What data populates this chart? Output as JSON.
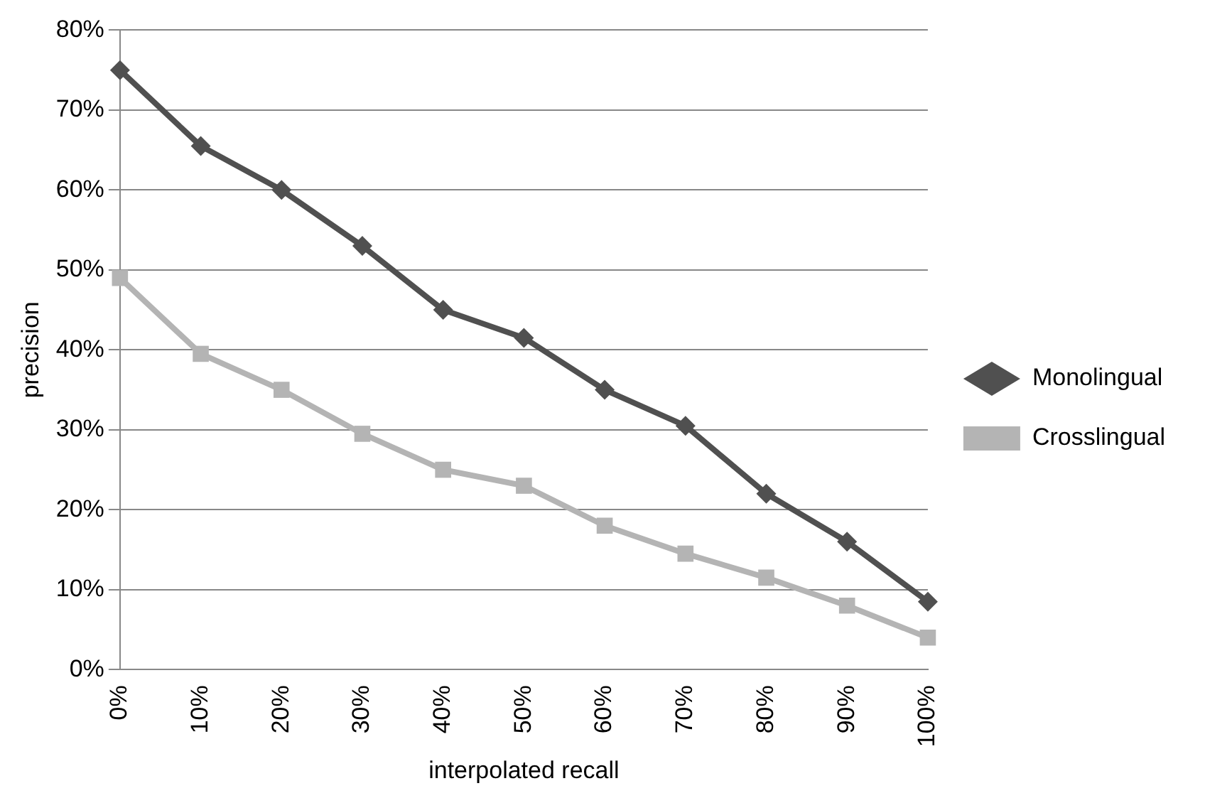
{
  "chart_data": {
    "type": "line",
    "xlabel": "interpolated recall",
    "ylabel": "precision",
    "categories": [
      "0%",
      "10%",
      "20%",
      "30%",
      "40%",
      "50%",
      "60%",
      "70%",
      "80%",
      "90%",
      "100%"
    ],
    "series": [
      {
        "name": "Monolingual",
        "color": "#505050",
        "marker": "diamond",
        "values": [
          75,
          65.5,
          60,
          53,
          45,
          41.5,
          35,
          30.5,
          22,
          16,
          8.5
        ]
      },
      {
        "name": "Crosslingual",
        "color": "#b4b4b4",
        "marker": "square",
        "values": [
          49,
          39.5,
          35,
          29.5,
          25,
          23,
          18,
          14.5,
          11.5,
          8,
          4
        ]
      }
    ],
    "ylim": [
      0,
      80
    ],
    "yticks": [
      {
        "value": 0,
        "label": "0%"
      },
      {
        "value": 10,
        "label": "10%"
      },
      {
        "value": 20,
        "label": "20%"
      },
      {
        "value": 30,
        "label": "30%"
      },
      {
        "value": 40,
        "label": "40%"
      },
      {
        "value": 50,
        "label": "50%"
      },
      {
        "value": 60,
        "label": "60%"
      },
      {
        "value": 70,
        "label": "70%"
      },
      {
        "value": 80,
        "label": "80%"
      }
    ],
    "grid": "y",
    "legend": "right"
  }
}
